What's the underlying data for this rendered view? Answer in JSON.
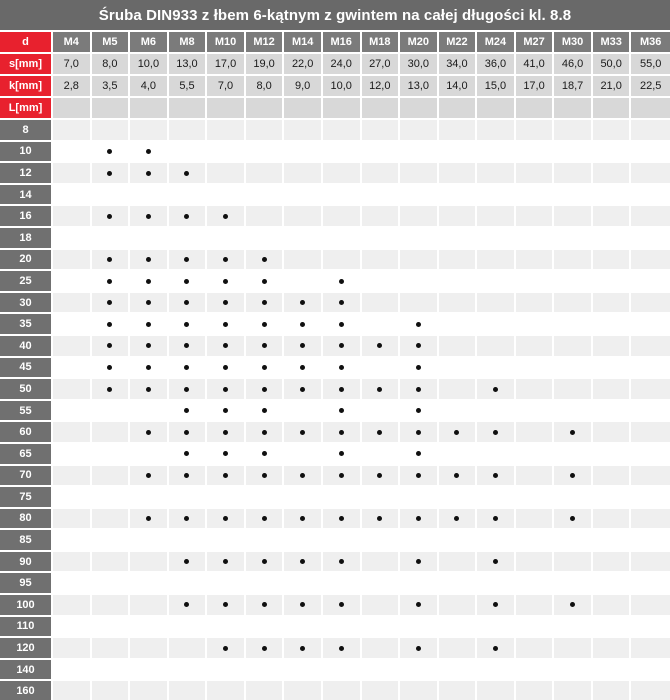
{
  "title": "Śruba DIN933 z łbem 6-kątnym z gwintem na całej długości kl. 8.8",
  "colors": {
    "title_bg": "#696969",
    "red_label_bg": "#e8212e",
    "column_header_bg": "#7b7b7b",
    "length_label_bg": "#707070",
    "value_cell_bg": "#d8d8d8",
    "row_alt_gray": "#efefef",
    "row_alt_white": "#ffffff",
    "dot_color": "#101010",
    "header_text": "#ffffff",
    "value_text": "#1a1a1a"
  },
  "table": {
    "row_labels": {
      "d": "d",
      "s": "s[mm]",
      "k": "k[mm]",
      "L": "L[mm]"
    },
    "columns": [
      "M4",
      "M5",
      "M6",
      "M8",
      "M10",
      "M12",
      "M14",
      "M16",
      "M18",
      "M20",
      "M22",
      "M24",
      "M27",
      "M30",
      "M33",
      "M36"
    ],
    "s_values": [
      "7,0",
      "8,0",
      "10,0",
      "13,0",
      "17,0",
      "19,0",
      "22,0",
      "24,0",
      "27,0",
      "30,0",
      "34,0",
      "36,0",
      "41,0",
      "46,0",
      "50,0",
      "55,0"
    ],
    "k_values": [
      "2,8",
      "3,5",
      "4,0",
      "5,5",
      "7,0",
      "8,0",
      "9,0",
      "10,0",
      "12,0",
      "13,0",
      "14,0",
      "15,0",
      "17,0",
      "18,7",
      "21,0",
      "22,5"
    ],
    "dot_symbol": "●",
    "lengths": [
      {
        "label": "8",
        "dots": "0000000000000000"
      },
      {
        "label": "10",
        "dots": "0110000000000000"
      },
      {
        "label": "12",
        "dots": "0111000000000000"
      },
      {
        "label": "14",
        "dots": "0000000000000000"
      },
      {
        "label": "16",
        "dots": "0111100000000000"
      },
      {
        "label": "18",
        "dots": "0000000000000000"
      },
      {
        "label": "20",
        "dots": "0111110000000000"
      },
      {
        "label": "25",
        "dots": "0111110100000000"
      },
      {
        "label": "30",
        "dots": "0111111100000000"
      },
      {
        "label": "35",
        "dots": "0111111101000000"
      },
      {
        "label": "40",
        "dots": "0111111111000000"
      },
      {
        "label": "45",
        "dots": "0111111101000000"
      },
      {
        "label": "50",
        "dots": "0111111111010000"
      },
      {
        "label": "55",
        "dots": "0001110101000000"
      },
      {
        "label": "60",
        "dots": "0011111111110100"
      },
      {
        "label": "65",
        "dots": "0001110101000000"
      },
      {
        "label": "70",
        "dots": "0011111111110100"
      },
      {
        "label": "75",
        "dots": "0000000000000000"
      },
      {
        "label": "80",
        "dots": "0011111111110100"
      },
      {
        "label": "85",
        "dots": "0000000000000000"
      },
      {
        "label": "90",
        "dots": "0001111101010000"
      },
      {
        "label": "95",
        "dots": "0000000000000000"
      },
      {
        "label": "100",
        "dots": "0001111101010100"
      },
      {
        "label": "110",
        "dots": "0000000000000000"
      },
      {
        "label": "120",
        "dots": "0000111101010000"
      },
      {
        "label": "140",
        "dots": "0000000000000000"
      },
      {
        "label": "160",
        "dots": "0000000000000000"
      }
    ]
  }
}
